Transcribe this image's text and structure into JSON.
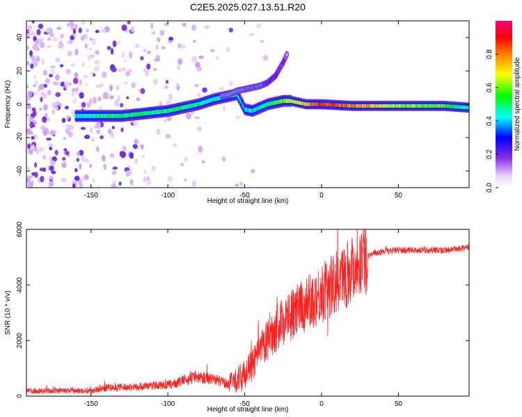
{
  "chart_data": [
    {
      "type": "heatmap",
      "title": "C2E5.2025.027.13.51.R20",
      "xlabel": "Height of straight line (km)",
      "ylabel": "Frequency (Hz)",
      "xlim": [
        -192,
        96
      ],
      "ylim": [
        -50,
        50
      ],
      "x_ticks": [
        -150,
        -100,
        -50,
        0,
        50
      ],
      "y_ticks": [
        -40,
        -20,
        0,
        20,
        40
      ],
      "colorbar": {
        "label": "Normalized spectral amplitude",
        "range": [
          0.0,
          1.0
        ],
        "ticks": [
          0.0,
          0.2,
          0.4,
          0.6,
          0.8
        ],
        "colors": [
          "#ffffff",
          "#e9d3ff",
          "#8a2be2",
          "#0000ff",
          "#00ffff",
          "#00ff00",
          "#ffff00",
          "#ff8000",
          "#ff0000",
          "#ff0080"
        ]
      },
      "ridge": {
        "name": "main frequency ridge",
        "x": [
          -160,
          -150,
          -140,
          -130,
          -120,
          -110,
          -100,
          -90,
          -80,
          -70,
          -60,
          -55,
          -50,
          -45,
          -40,
          -35,
          -30,
          -25,
          -20,
          -10,
          0,
          20,
          50,
          80,
          95
        ],
        "y": [
          -7,
          -7,
          -7,
          -7,
          -6,
          -5,
          -4,
          -2,
          0,
          3,
          5,
          6,
          -3,
          -4,
          -2,
          0,
          1,
          2,
          2,
          0,
          0,
          -1,
          -1,
          -1,
          -2
        ],
        "amplitude": [
          0.45,
          0.45,
          0.5,
          0.5,
          0.5,
          0.5,
          0.5,
          0.5,
          0.48,
          0.45,
          0.45,
          0.42,
          0.4,
          0.42,
          0.45,
          0.5,
          0.55,
          0.6,
          0.62,
          0.75,
          0.85,
          0.8,
          0.62,
          0.58,
          0.45
        ]
      },
      "upper_branch": {
        "name": "secondary ridge",
        "x": [
          -65,
          -60,
          -55,
          -50,
          -45,
          -40,
          -35,
          -30,
          -25,
          -22
        ],
        "y": [
          5,
          6,
          8,
          9,
          10,
          11,
          13,
          17,
          25,
          31
        ],
        "amplitude": [
          0.4,
          0.45,
          0.45,
          0.4,
          0.35,
          0.4,
          0.3,
          0.25,
          0.2,
          0.15
        ]
      }
    },
    {
      "type": "line",
      "xlabel": "Height of straight line (km)",
      "ylabel": "SNR (10 * v/v)",
      "xlim": [
        -192,
        96
      ],
      "ylim": [
        0,
        6000
      ],
      "x_ticks": [
        -150,
        -100,
        -50,
        0,
        50
      ],
      "y_ticks": [
        0,
        2000,
        4000,
        6000
      ],
      "series": [
        {
          "name": "SNR",
          "color": "#ff2020",
          "x": [
            -192,
            -180,
            -170,
            -160,
            -150,
            -145,
            -140,
            -130,
            -120,
            -110,
            -100,
            -95,
            -90,
            -85,
            -80,
            -75,
            -70,
            -65,
            -60,
            -55,
            -50,
            -45,
            -40,
            -35,
            -30,
            -25,
            -20,
            -15,
            -10,
            -5,
            0,
            5,
            10,
            15,
            20,
            25,
            30,
            35,
            40,
            50,
            60,
            70,
            80,
            90,
            96
          ],
          "y": [
            200,
            180,
            200,
            190,
            200,
            250,
            300,
            320,
            330,
            380,
            400,
            460,
            560,
            640,
            680,
            660,
            620,
            520,
            420,
            600,
            800,
            1100,
            1600,
            2000,
            2400,
            2700,
            2900,
            3100,
            3300,
            3500,
            3700,
            3900,
            4100,
            4300,
            4650,
            4900,
            5050,
            5150,
            5200,
            5250,
            5250,
            5250,
            5250,
            5300,
            5350
          ]
        }
      ]
    }
  ]
}
